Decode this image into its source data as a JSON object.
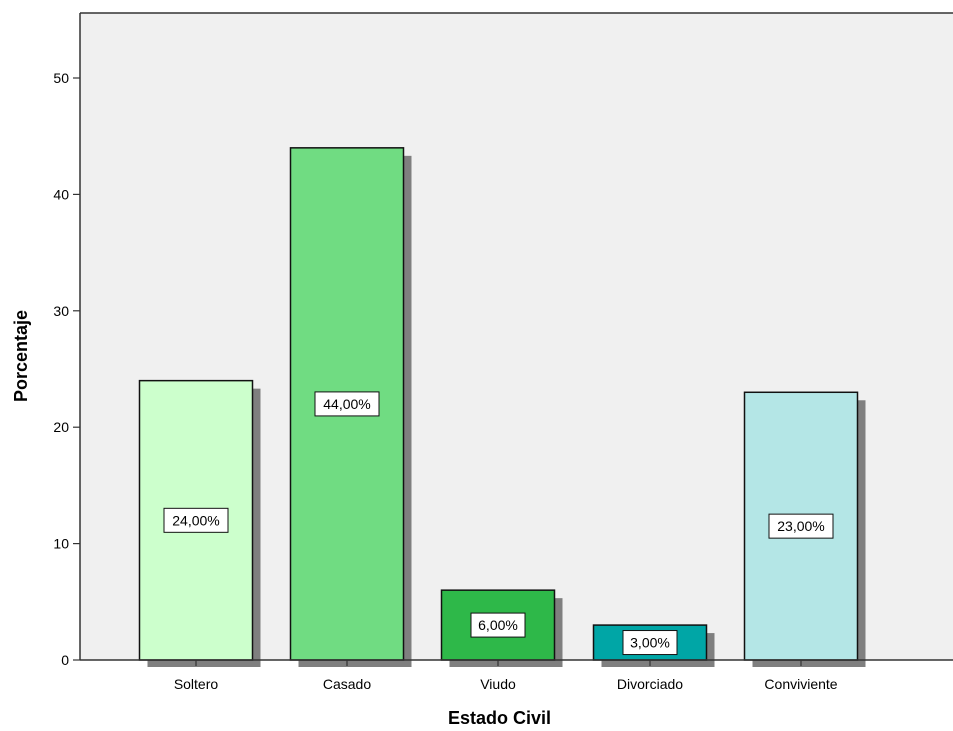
{
  "chart_data": {
    "type": "bar",
    "title": "",
    "xlabel": "Estado Civil",
    "ylabel": "Porcentaje",
    "ylim": [
      0,
      55
    ],
    "yticks": [
      0,
      10,
      20,
      30,
      40,
      50
    ],
    "grid": false,
    "legend": "none",
    "categories": [
      "Soltero",
      "Casado",
      "Viudo",
      "Divorciado",
      "Conviviente"
    ],
    "values": [
      24,
      44,
      6,
      3,
      23
    ],
    "data_labels": [
      "24,00%",
      "44,00%",
      "6,00%",
      "3,00%",
      "23,00%"
    ],
    "colors": [
      "#ccffcc",
      "#70dc82",
      "#2eb849",
      "#00a6a6",
      "#b4e6e6"
    ],
    "background_color": "#f0f0f0",
    "shadow_color": "#7f7f7f"
  }
}
